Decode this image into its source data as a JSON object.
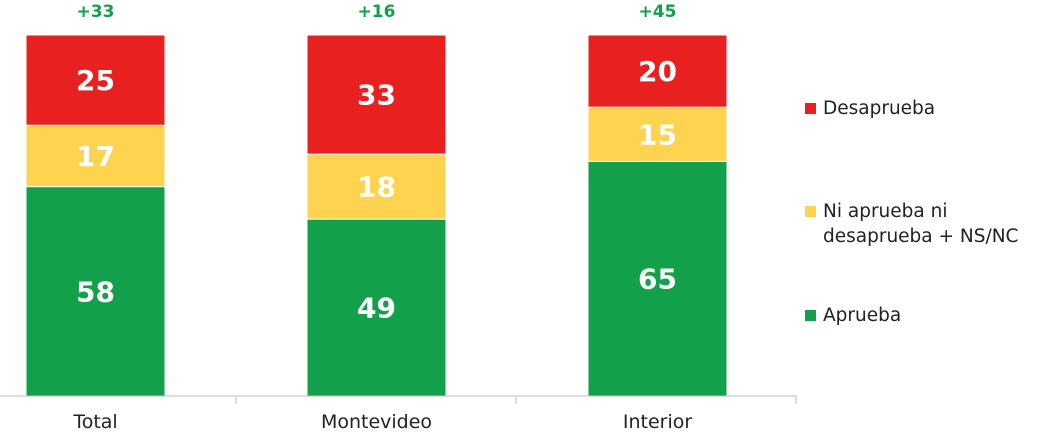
{
  "chart_data": {
    "type": "bar",
    "stacked": true,
    "categories": [
      "Total",
      "Montevideo",
      "Interior"
    ],
    "series": [
      {
        "name": "Aprueba",
        "color": "#12a14a",
        "values": [
          58,
          49,
          65
        ]
      },
      {
        "name": "Ni aprueba ni desaprueba + NS/NC",
        "color": "#fdd34f",
        "values": [
          17,
          18,
          15
        ]
      },
      {
        "name": "Desaprueba",
        "color": "#e82020",
        "values": [
          25,
          33,
          20
        ]
      }
    ],
    "annotations": [
      "+33",
      "+16",
      "+45"
    ],
    "annotation_color": "#12a14a",
    "ylim": [
      0,
      100
    ],
    "title": "",
    "xlabel": "",
    "ylabel": "",
    "legend_position": "right"
  },
  "legend": {
    "items": [
      {
        "label": "Desaprueba",
        "color": "#e82020"
      },
      {
        "label": "Ni aprueba ni desaprueba + NS/NC",
        "color": "#fdd34f"
      },
      {
        "label": "Aprueba",
        "color": "#12a14a"
      }
    ]
  }
}
